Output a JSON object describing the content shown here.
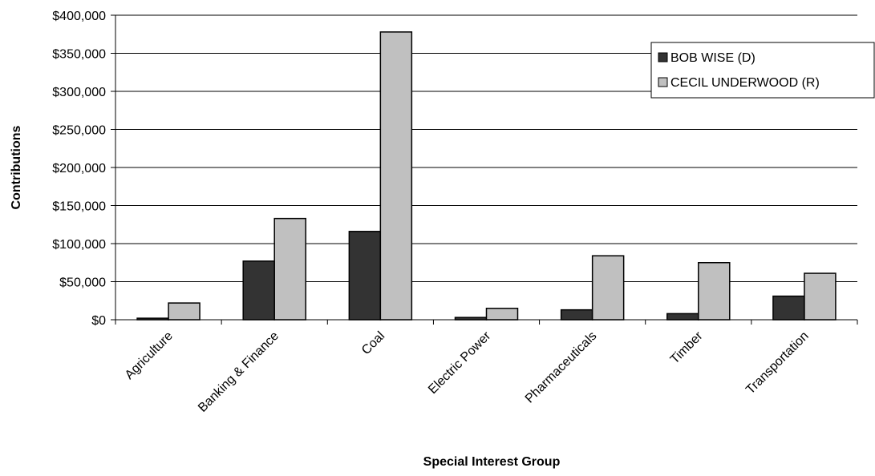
{
  "chart_data": {
    "type": "bar",
    "title": "",
    "xlabel": "Special Interest Group",
    "ylabel": "Contributions",
    "categories": [
      "Agriculture",
      "Banking & Finance",
      "Coal",
      "Electric Power",
      "Pharmaceuticals",
      "Timber",
      "Transportation"
    ],
    "series": [
      {
        "name": "BOB WISE (D)",
        "color": "#333333",
        "values": [
          2000,
          77000,
          116000,
          3000,
          13000,
          8000,
          31000
        ]
      },
      {
        "name": "CECIL UNDERWOOD (R)",
        "color": "#c0c0c0",
        "values": [
          22000,
          133000,
          378000,
          15000,
          84000,
          75000,
          61000
        ]
      }
    ],
    "ylim": [
      0,
      400000
    ],
    "yticks": [
      0,
      50000,
      100000,
      150000,
      200000,
      250000,
      300000,
      350000,
      400000
    ],
    "ytick_labels": [
      "$0",
      "$50,000",
      "$100,000",
      "$150,000",
      "$200,000",
      "$250,000",
      "$300,000",
      "$350,000",
      "$400,000"
    ],
    "grid": true,
    "legend_position": "top-right"
  }
}
